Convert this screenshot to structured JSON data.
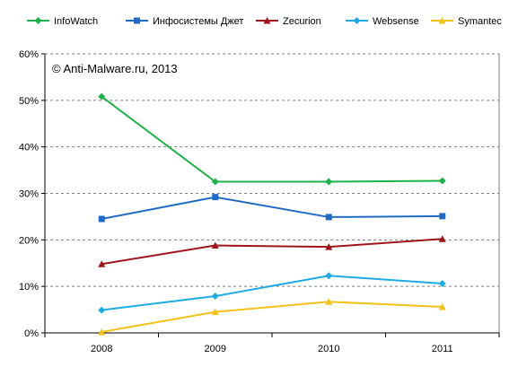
{
  "chart_data": {
    "type": "line",
    "title": "",
    "xlabel": "",
    "ylabel": "",
    "categories": [
      "2008",
      "2009",
      "2010",
      "2011"
    ],
    "ylim": [
      0,
      60
    ],
    "y_ticks": [
      "0%",
      "10%",
      "20%",
      "30%",
      "40%",
      "50%",
      "60%"
    ],
    "grid": "horizontal dashed",
    "legend_position": "top",
    "annotation": "© Anti-Malware.ru,  2013",
    "series": [
      {
        "name": "InfoWatch",
        "color": "#1fb14b",
        "marker": "diamond",
        "values": [
          50.8,
          32.5,
          32.5,
          32.7
        ]
      },
      {
        "name": "Инфосистемы Джет",
        "color": "#1f6bc4",
        "marker": "square",
        "values": [
          24.5,
          29.2,
          24.9,
          25.1
        ]
      },
      {
        "name": "Zecurion",
        "color": "#a0151b",
        "marker": "triangle",
        "values": [
          14.8,
          18.8,
          18.5,
          20.2
        ]
      },
      {
        "name": "Websense",
        "color": "#1eabe3",
        "marker": "diamond",
        "values": [
          4.9,
          7.9,
          12.3,
          10.6
        ]
      },
      {
        "name": "Symantec",
        "color": "#f2c21a",
        "marker": "triangle",
        "values": [
          0.2,
          4.5,
          6.7,
          5.6
        ]
      }
    ]
  }
}
